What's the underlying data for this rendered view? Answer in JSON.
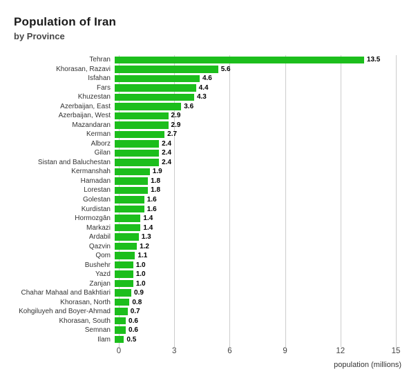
{
  "header": {
    "title": "Population of Iran",
    "subtitle": "by Province"
  },
  "chart_data": {
    "type": "bar",
    "orientation": "horizontal",
    "title": "Population of Iran",
    "subtitle": "by Province",
    "xlabel": "population (millions)",
    "categories": [
      "Tehran",
      "Khorasan, Razavi",
      "Isfahan",
      "Fars",
      "Khuzestan",
      "Azerbaijan, East",
      "Azerbaijan, West",
      "Mazandaran",
      "Kerman",
      "Alborz",
      "Gilan",
      "Sistan and Baluchestan",
      "Kermanshah",
      "Hamadan",
      "Lorestan",
      "Golestan",
      "Kurdistan",
      "Hormozgān",
      "Markazi",
      "Ardabil",
      "Qazvin",
      "Qom",
      "Bushehr",
      "Yazd",
      "Zanjan",
      "Chahar Mahaal and Bakhtiari",
      "Khorasan, North",
      "Kohgiluyeh and Boyer-Ahmad",
      "Khorasan, South",
      "Semnan",
      "Ilam"
    ],
    "values": [
      13.5,
      5.6,
      4.6,
      4.4,
      4.3,
      3.6,
      2.9,
      2.9,
      2.7,
      2.4,
      2.4,
      2.4,
      1.9,
      1.8,
      1.8,
      1.6,
      1.6,
      1.4,
      1.4,
      1.3,
      1.2,
      1.1,
      1.0,
      1.0,
      1.0,
      0.9,
      0.8,
      0.7,
      0.6,
      0.6,
      0.5
    ],
    "xticks": [
      0,
      3,
      6,
      9,
      12,
      15
    ],
    "xlim": [
      0,
      15
    ],
    "grid": true,
    "legend": false,
    "bar_color": "#1cbe1c",
    "gridline_color": "#cccccc"
  }
}
